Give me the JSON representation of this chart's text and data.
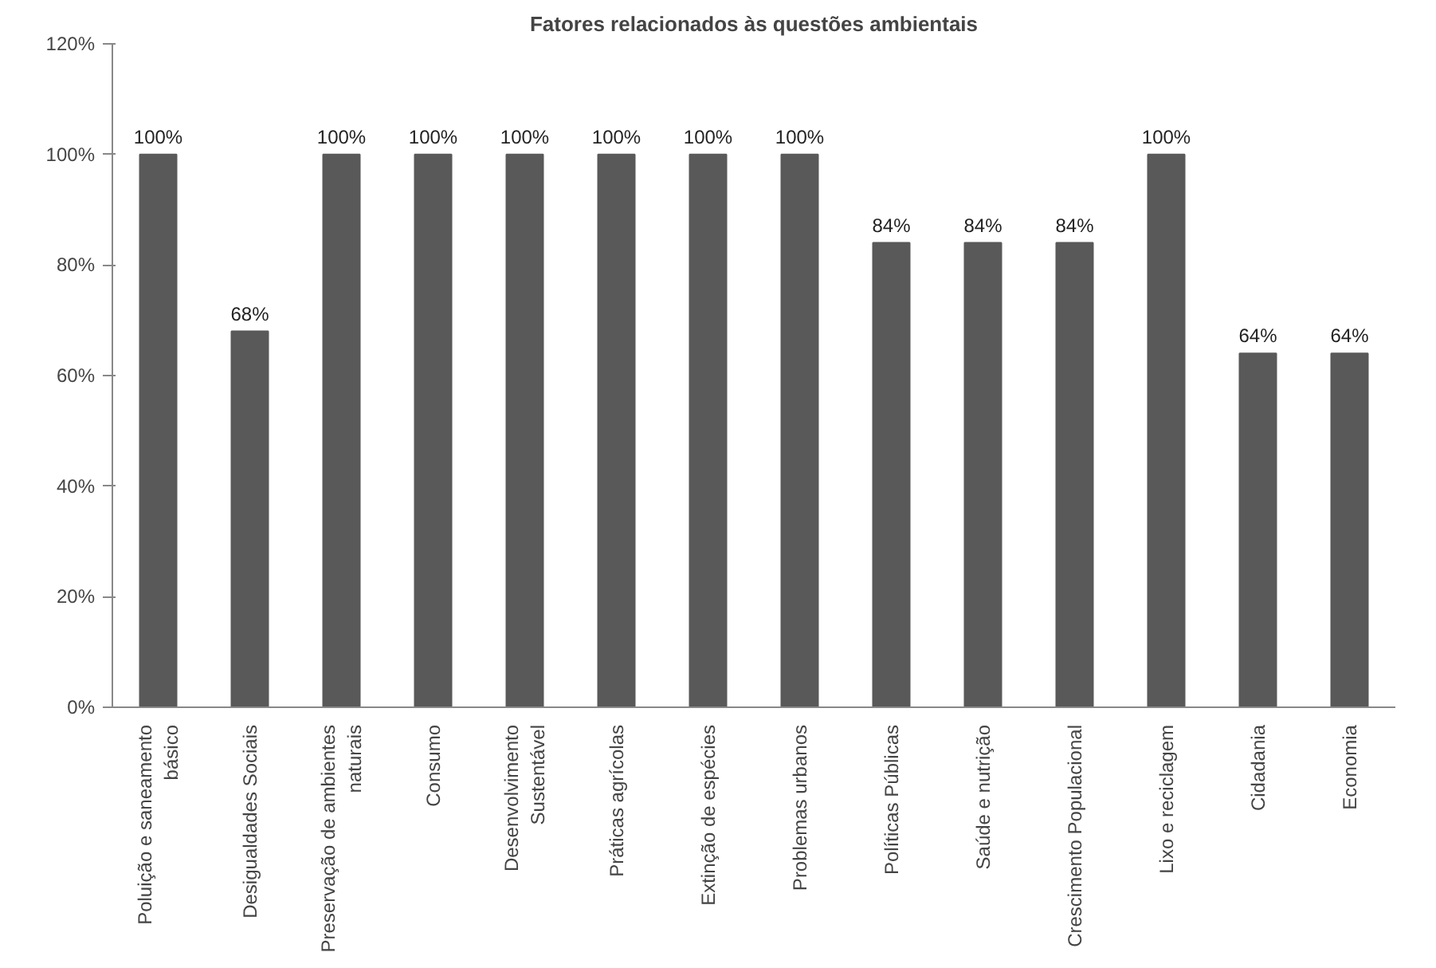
{
  "chart_data": {
    "type": "bar",
    "title": "Fatores relacionados às questões ambientais",
    "categories": [
      "Poluição e saneamento básico",
      "Desigualdades Sociais",
      "Preservação de ambientes naturais",
      "Consumo",
      "Desenvolvimento Sustentável",
      "Práticas agrícolas",
      "Extinção de espécies",
      "Problemas urbanos",
      "Políticas Públicas",
      "Saúde e nutrição",
      "Crescimento Populacional",
      "Lixo e reciclagem",
      "Cidadania",
      "Economia"
    ],
    "values": [
      100,
      68,
      100,
      100,
      100,
      100,
      100,
      100,
      84,
      84,
      84,
      100,
      64,
      64
    ],
    "value_labels": [
      "100%",
      "68%",
      "100%",
      "100%",
      "100%",
      "100%",
      "100%",
      "100%",
      "84%",
      "84%",
      "84%",
      "100%",
      "64%",
      "64%"
    ],
    "color": "#595959",
    "ylim": [
      0,
      120
    ],
    "yticks": [
      {
        "value": 0,
        "label": "0%"
      },
      {
        "value": 20,
        "label": "20%"
      },
      {
        "value": 40,
        "label": "40%"
      },
      {
        "value": 60,
        "label": "60%"
      },
      {
        "value": 80,
        "label": "80%"
      },
      {
        "value": 100,
        "label": "100%"
      },
      {
        "value": 120,
        "label": "120%"
      }
    ],
    "grid": false
  }
}
